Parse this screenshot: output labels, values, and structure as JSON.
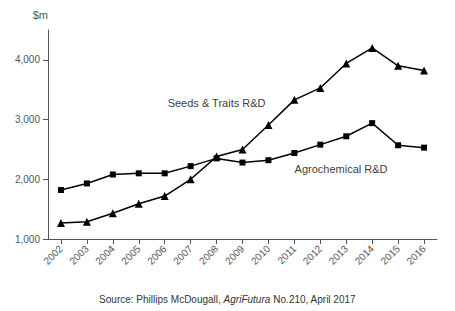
{
  "chart_data": {
    "type": "line",
    "x": [
      2002,
      2003,
      2004,
      2005,
      2006,
      2007,
      2008,
      2009,
      2010,
      2011,
      2012,
      2013,
      2014,
      2015,
      2016
    ],
    "series": [
      {
        "color": "#000000",
        "marker": "triangle",
        "values": [
          1270,
          1290,
          1430,
          1590,
          1720,
          2000,
          2380,
          2500,
          2910,
          3330,
          3530,
          3940,
          4200,
          3900,
          3820
        ]
      },
      {
        "color": "#000000",
        "marker": "square",
        "values": [
          1820,
          1930,
          2080,
          2100,
          2100,
          2220,
          2350,
          2280,
          2320,
          2440,
          2580,
          2720,
          2940,
          2570,
          2530
        ]
      }
    ],
    "annotations": [
      {
        "text": "Seeds & Traits R&D",
        "x": 2008.0,
        "y": 3280
      },
      {
        "text": "Agrochemical R&D",
        "x": 2012.8,
        "y": 2175
      }
    ],
    "y_label": "$m",
    "source": [
      "Source: Phillips McDougall, ",
      "AgriFutura",
      " No.210, April 2017"
    ],
    "xlim": [
      2001.5,
      2016.5
    ],
    "xticks": [
      2002,
      2003,
      2004,
      2005,
      2006,
      2007,
      2008,
      2009,
      2010,
      2011,
      2012,
      2013,
      2014,
      2015,
      2016
    ],
    "ylim": [
      1000,
      4500
    ],
    "yticks": [
      {
        "value": 1000,
        "label": "1,000"
      },
      {
        "value": 2000,
        "label": "2,000"
      },
      {
        "value": 3000,
        "label": "3,000"
      },
      {
        "value": 4000,
        "label": "4,000"
      }
    ],
    "grid": false
  }
}
